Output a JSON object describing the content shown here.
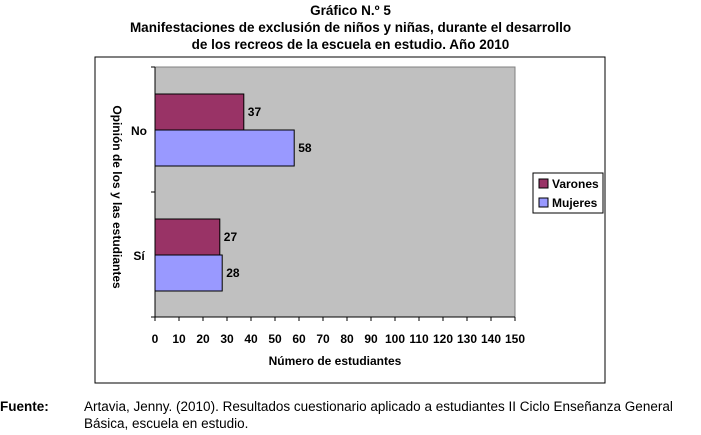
{
  "title_lines": [
    "Gráfico N.º 5",
    "Manifestaciones de exclusión de niños y niñas, durante el desarrollo",
    "de los recreos de la escuela en estudio. Año 2010"
  ],
  "source": {
    "label": "Fuente:",
    "text": "Artavia, Jenny. (2010). Resultados cuestionario aplicado a estudiantes II Ciclo Enseñanza General Básica, escuela en estudio."
  },
  "colors": {
    "plot_bg": "#c0c0c0",
    "varones": "#993366",
    "mujeres": "#9999ff"
  },
  "chart_data": {
    "type": "bar",
    "orientation": "horizontal",
    "categories": [
      "No",
      "Sí"
    ],
    "series": [
      {
        "name": "Varones",
        "values": [
          37,
          27
        ]
      },
      {
        "name": "Mujeres",
        "values": [
          58,
          28
        ]
      }
    ],
    "xlabel": "Número de estudiantes",
    "ylabel": "Opinión de los y las estudiantes",
    "xlim": [
      0,
      150
    ],
    "xticks": [
      0,
      10,
      20,
      30,
      40,
      50,
      60,
      70,
      80,
      90,
      100,
      110,
      120,
      130,
      140,
      150
    ],
    "legend_position": "right",
    "grid": false
  }
}
